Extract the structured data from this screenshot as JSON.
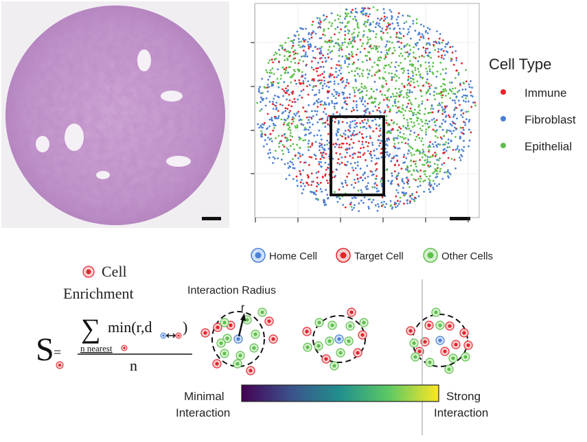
{
  "legend": {
    "title": "Cell Type",
    "items": [
      {
        "label": "Immune",
        "color": "#e3242b"
      },
      {
        "label": "Fibroblast",
        "color": "#4a7fd4"
      },
      {
        "label": "Epithelial",
        "color": "#5cbf4a"
      }
    ]
  },
  "cell_legend": [
    {
      "label": "Home Cell",
      "color": "#4a7fd4"
    },
    {
      "label": "Target Cell",
      "color": "#e3242b"
    },
    {
      "label": "Other Cells",
      "color": "#5cbf4a"
    }
  ],
  "enrichment": {
    "label_line1": "Cell",
    "label_line2": "Enrichment"
  },
  "formula": {
    "lhs": "S",
    "eq": "=",
    "sigma": "∑",
    "min_text": "min(r,d",
    "close": ")",
    "subscript": "n nearest",
    "denominator": "n"
  },
  "interaction": {
    "radius_label": "Interaction Radius",
    "r_label": "r"
  },
  "colorbar": {
    "min_label_1": "Minimal",
    "min_label_2": "Interaction",
    "max_label_1": "Strong",
    "max_label_2": "Interaction"
  },
  "colors": {
    "immune": "#e3242b",
    "fibroblast": "#4a7fd4",
    "epithelial": "#5cbf4a",
    "tissue": "#c9a3d0"
  }
}
